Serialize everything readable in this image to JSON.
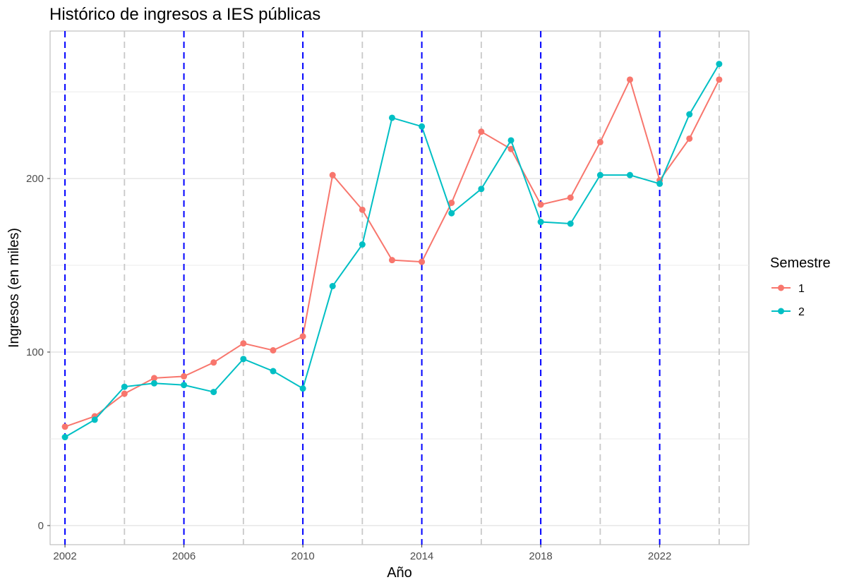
{
  "chart_data": {
    "type": "line",
    "title": "Histórico de ingresos a IES públicas",
    "xlabel": "Año",
    "ylabel": "Ingresos (en miles)",
    "x": [
      2002,
      2003,
      2004,
      2005,
      2006,
      2007,
      2008,
      2009,
      2010,
      2011,
      2012,
      2013,
      2014,
      2015,
      2016,
      2017,
      2018,
      2019,
      2020,
      2021,
      2022,
      2023,
      2024
    ],
    "series": [
      {
        "name": "1",
        "color": "#f8766d",
        "values": [
          57,
          63,
          76,
          85,
          86,
          94,
          105,
          101,
          109,
          202,
          182,
          153,
          152,
          186,
          227,
          217,
          185,
          189,
          221,
          257,
          199,
          223,
          257
        ]
      },
      {
        "name": "2",
        "color": "#00bfc4",
        "values": [
          51,
          61,
          80,
          82,
          81,
          77,
          96,
          89,
          79,
          138,
          162,
          235,
          230,
          180,
          194,
          222,
          175,
          174,
          202,
          202,
          197,
          237,
          266
        ]
      }
    ],
    "xlim": [
      2001.5,
      2025.0
    ],
    "ylim": [
      -11,
      285
    ],
    "x_ticks": [
      2002,
      2006,
      2010,
      2014,
      2018,
      2022
    ],
    "x_ticks_labels": [
      "2002",
      "2006",
      "2010",
      "2014",
      "2018",
      "2022"
    ],
    "y_ticks": [
      0,
      100,
      200
    ],
    "y_ticks_labels": [
      "0",
      "100",
      "200"
    ],
    "y_minor_ticks": [
      50,
      150,
      250
    ],
    "vlines_blue": [
      2002,
      2006,
      2010,
      2014,
      2018,
      2022
    ],
    "vlines_grey": [
      2004,
      2008,
      2012,
      2016,
      2020,
      2024
    ],
    "vline_blue_color": "#0000ff",
    "vline_grey_color": "#c8c8c8",
    "grid": true,
    "legend": {
      "title": "Semestre",
      "position": "right"
    }
  }
}
